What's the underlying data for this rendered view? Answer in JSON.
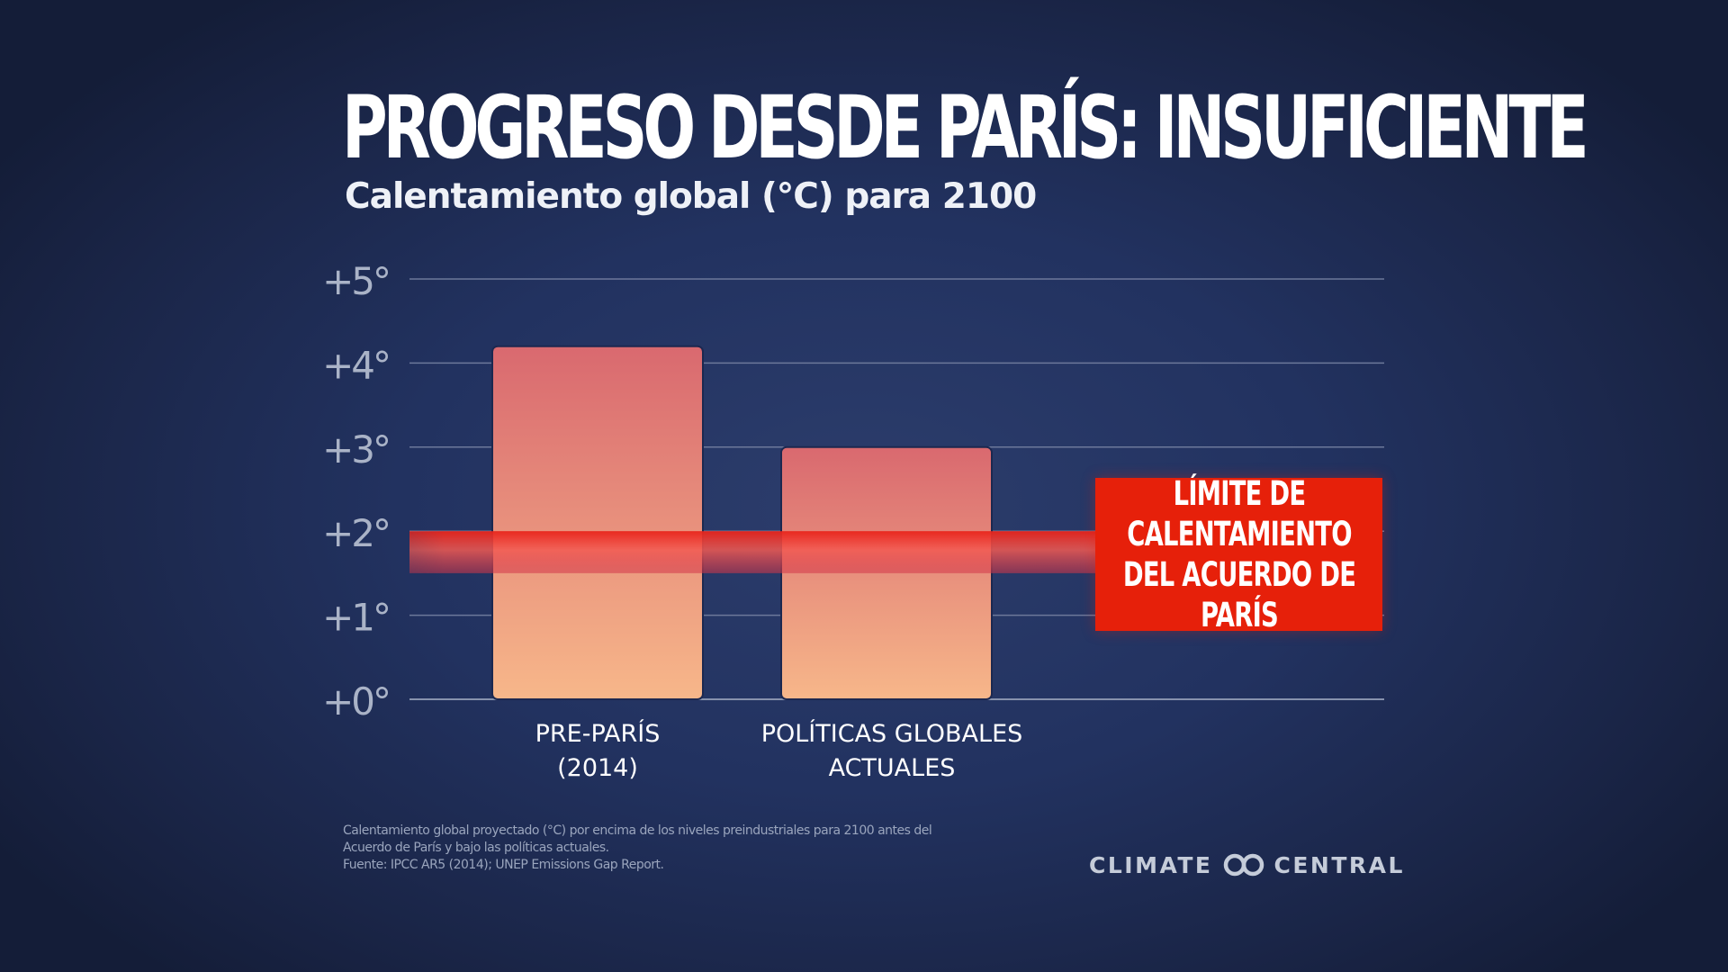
{
  "header": {
    "title": "PROGRESO DESDE PARÍS: INSUFICIENTE",
    "subtitle": "Calentamiento global (°C) para 2100"
  },
  "chart_data": {
    "type": "bar",
    "title": "PROGRESO DESDE PARÍS: INSUFICIENTE",
    "subtitle": "Calentamiento global (°C) para 2100",
    "categories": [
      "PRE-PARÍS\n(2014)",
      "POLÍTICAS GLOBALES\nACTUALES"
    ],
    "values": [
      4.2,
      3.0
    ],
    "ylim": [
      0,
      5
    ],
    "yticks": [
      0,
      1,
      2,
      3,
      4,
      5
    ],
    "ytick_labels": [
      "+0°",
      "+1°",
      "+2°",
      "+3°",
      "+4°",
      "+5°"
    ],
    "grid": true,
    "reference_band": {
      "range": [
        1.5,
        2.0
      ],
      "label": "LÍMITE DE\nCALENTAMIENTO\nDEL ACUERDO DE PARÍS",
      "color": "#e6200a"
    },
    "bar_gradient": {
      "top": "#d9696f",
      "bottom": "#f7b78a"
    }
  },
  "footnote": {
    "lines": [
      "Calentamiento global proyectado (°C) por encima de los niveles preindustriales para 2100 antes del",
      "Acuerdo de París y bajo las políticas actuales.",
      "Fuente: IPCC AR5 (2014); UNEP Emissions Gap Report."
    ]
  },
  "logo": {
    "left_text": "CLIMATE",
    "right_text": "CENTRAL",
    "icon": "interlocking-rings-icon"
  }
}
